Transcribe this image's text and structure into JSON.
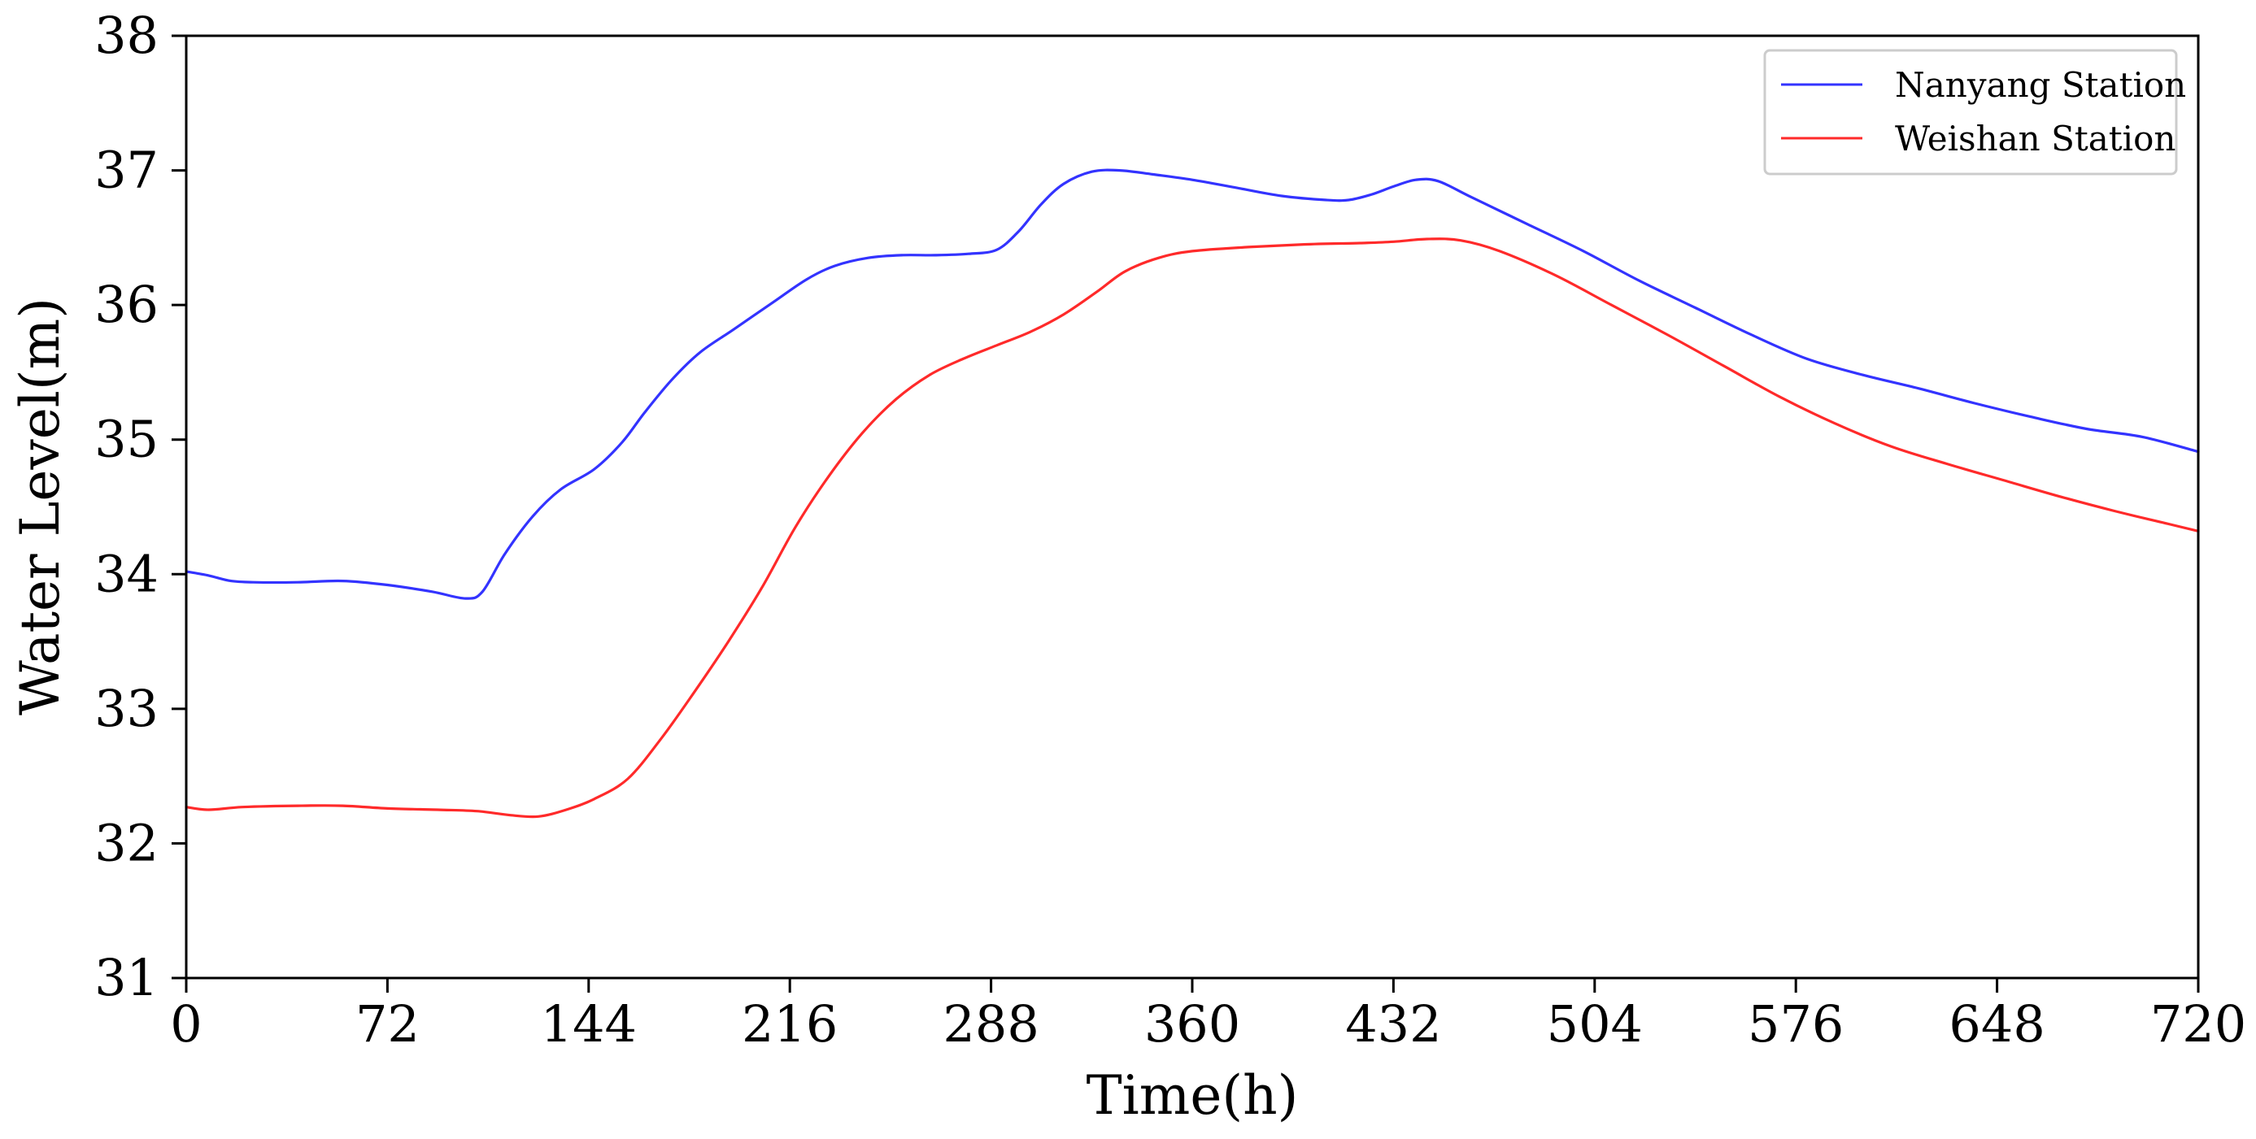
{
  "chart_data": {
    "type": "line",
    "title": "",
    "xlabel": "Time(h)",
    "ylabel": "Water Level(m)",
    "xlim": [
      0,
      720
    ],
    "ylim": [
      31,
      38
    ],
    "xticks": [
      0,
      72,
      144,
      216,
      288,
      360,
      432,
      504,
      576,
      648,
      720
    ],
    "xtick_labels": [
      "0",
      "72",
      "144",
      "216",
      "288",
      "360",
      "432",
      "504",
      "576",
      "648",
      "720"
    ],
    "yticks": [
      31,
      32,
      33,
      34,
      35,
      36,
      37,
      38
    ],
    "ytick_labels": [
      "31",
      "32",
      "33",
      "34",
      "35",
      "36",
      "37",
      "38"
    ],
    "grid": false,
    "legend": {
      "position": "top-right"
    },
    "series": [
      {
        "name": "Nanyang Station",
        "color": "#3333ff",
        "x": [
          0,
          8,
          16,
          24,
          40,
          56,
          72,
          88,
          100,
          106,
          114,
          124,
          134,
          146,
          156,
          164,
          174,
          184,
          196,
          210,
          222,
          232,
          244,
          256,
          268,
          280,
          290,
          298,
          306,
          314,
          324,
          334,
          346,
          360,
          376,
          392,
          408,
          416,
          424,
          432,
          440,
          448,
          460,
          480,
          500,
          520,
          540,
          560,
          580,
          600,
          620,
          640,
          660,
          680,
          700,
          720
        ],
        "values": [
          34.02,
          33.99,
          33.95,
          33.94,
          33.94,
          33.95,
          33.92,
          33.87,
          33.82,
          33.87,
          34.15,
          34.43,
          34.63,
          34.78,
          34.98,
          35.2,
          35.45,
          35.65,
          35.82,
          36.02,
          36.19,
          36.29,
          36.35,
          36.37,
          36.37,
          36.38,
          36.41,
          36.55,
          36.75,
          36.9,
          36.99,
          37.0,
          36.97,
          36.93,
          36.87,
          36.81,
          36.78,
          36.78,
          36.82,
          36.88,
          36.93,
          36.92,
          36.8,
          36.6,
          36.4,
          36.18,
          35.98,
          35.78,
          35.6,
          35.48,
          35.38,
          35.27,
          35.17,
          35.08,
          35.02,
          34.91
        ]
      },
      {
        "name": "Weishan Station",
        "color": "#ff2a2a",
        "x": [
          0,
          8,
          20,
          40,
          56,
          72,
          90,
          104,
          116,
          126,
          136,
          146,
          158,
          170,
          182,
          194,
          206,
          218,
          230,
          242,
          254,
          266,
          278,
          290,
          302,
          314,
          326,
          336,
          348,
          360,
          380,
          400,
          420,
          432,
          444,
          456,
          470,
          490,
          510,
          530,
          550,
          570,
          590,
          610,
          630,
          650,
          670,
          690,
          710,
          720
        ],
        "values": [
          32.27,
          32.25,
          32.27,
          32.28,
          32.28,
          32.26,
          32.25,
          32.24,
          32.21,
          32.2,
          32.25,
          32.33,
          32.48,
          32.78,
          33.13,
          33.5,
          33.9,
          34.35,
          34.73,
          35.05,
          35.3,
          35.48,
          35.6,
          35.7,
          35.8,
          35.93,
          36.1,
          36.25,
          36.35,
          36.4,
          36.43,
          36.45,
          36.46,
          36.47,
          36.49,
          36.48,
          36.4,
          36.22,
          36.0,
          35.78,
          35.55,
          35.32,
          35.12,
          34.95,
          34.82,
          34.7,
          34.58,
          34.47,
          34.37,
          34.32
        ]
      }
    ]
  }
}
